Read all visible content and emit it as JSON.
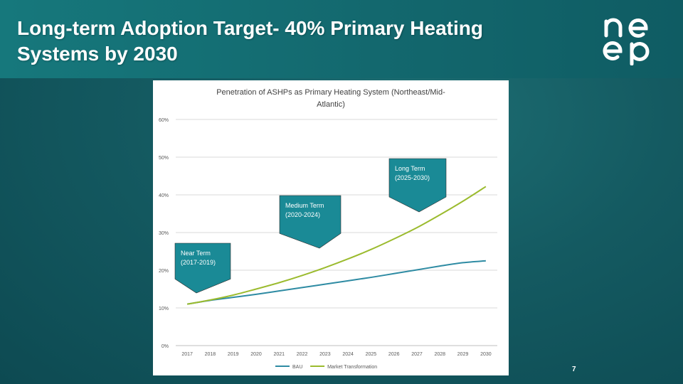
{
  "slide": {
    "title_line1": "Long-term Adoption Target- 40% Primary Heating",
    "title_line2": "Systems by 2030",
    "page_number": "7",
    "logo_text": "neep",
    "colors": {
      "header": "#16787c",
      "background": "#145a61",
      "callout": "#1a8a96"
    }
  },
  "chart_data": {
    "type": "line",
    "title_line1": "Penetration of ASHPs as Primary Heating System (Northeast/Mid-",
    "title_line2": "Atlantic)",
    "x": [
      2017,
      2018,
      2019,
      2020,
      2021,
      2022,
      2023,
      2024,
      2025,
      2026,
      2027,
      2028,
      2029,
      2030
    ],
    "y_ticks": [
      "0%",
      "10%",
      "20%",
      "30%",
      "40%",
      "50%",
      "60%"
    ],
    "ylim": [
      0,
      60
    ],
    "grid": true,
    "legend": "bottom",
    "series": [
      {
        "name": "BAU",
        "color": "#2e8ba3",
        "values": [
          11,
          12,
          12.8,
          13.6,
          14.5,
          15.4,
          16.3,
          17.2,
          18.1,
          19.1,
          20.1,
          21.1,
          22,
          22.5
        ]
      },
      {
        "name": "Market Transformation",
        "color": "#9bbb2e",
        "values": [
          11,
          12.1,
          13.4,
          15,
          16.7,
          18.6,
          20.7,
          23,
          25.5,
          28.3,
          31.3,
          34.7,
          38.3,
          42.2
        ]
      }
    ],
    "annotations": [
      {
        "line1": "Near Term",
        "line2": "(2017-2019)"
      },
      {
        "line1": "Medium Term",
        "line2": "(2020-2024)"
      },
      {
        "line1": "Long Term",
        "line2": "(2025-2030)"
      }
    ]
  }
}
